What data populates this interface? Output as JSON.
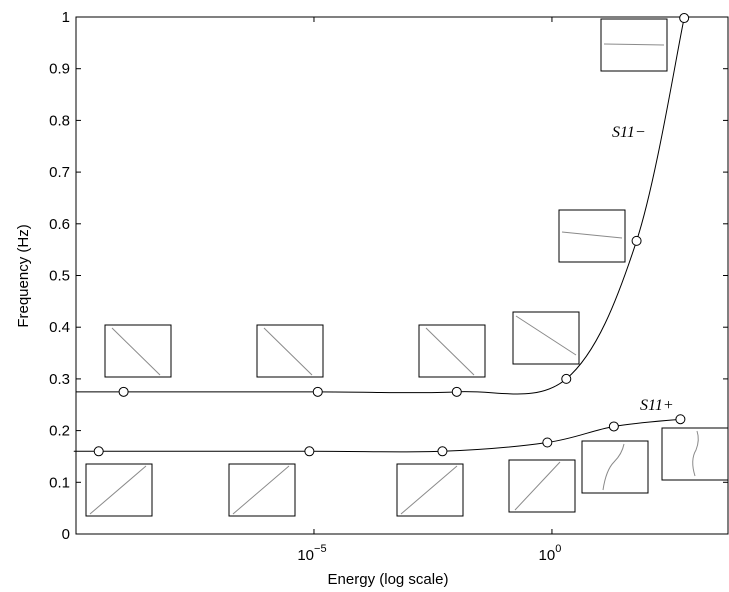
{
  "chart_data": {
    "type": "line",
    "title": "",
    "xlabel": "Energy (log scale)",
    "ylabel": "Frequency (Hz)",
    "x_scale": "log",
    "x_ticks": [
      {
        "value": 1e-05,
        "base": "10",
        "exp": "−5"
      },
      {
        "value": 1,
        "label": "10",
        "exp": "0"
      }
    ],
    "xlim": [
      1e-10,
      5000
    ],
    "ylim": [
      0,
      1
    ],
    "y_ticks": [
      "0",
      "0.1",
      "0.2",
      "0.3",
      "0.4",
      "0.5",
      "0.6",
      "0.7",
      "0.8",
      "0.9",
      "1"
    ],
    "grid": false,
    "series": [
      {
        "name": "S11−",
        "x": [
          1e-09,
          1.2e-05,
          0.01,
          2,
          60,
          600
        ],
        "y": [
          0.275,
          0.275,
          0.275,
          0.3,
          0.567,
          0.998
        ]
      },
      {
        "name": "S11+",
        "x": [
          3e-10,
          8e-06,
          0.005,
          0.8,
          20,
          500
        ],
        "y": [
          0.16,
          0.16,
          0.16,
          0.177,
          0.208,
          0.222
        ]
      }
    ]
  }
}
